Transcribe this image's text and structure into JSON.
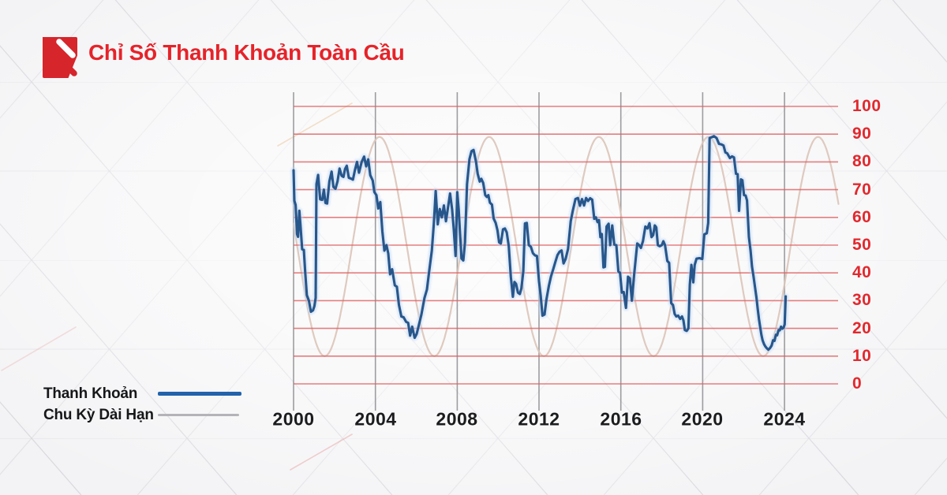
{
  "header": {
    "title": "Chỉ Số Thanh Khoản Toàn Cầu",
    "logo": "red-square-pencil-mark",
    "title_color": "#e62329"
  },
  "legend": {
    "items": [
      {
        "label": "Thanh Khoản",
        "color": "#2263ab",
        "style": "thick-solid"
      },
      {
        "label": "Chu Kỳ Dài Hạn",
        "color": "#b4b4b8",
        "style": "thin-solid"
      }
    ]
  },
  "chart_data": {
    "type": "line",
    "title": "Chỉ Số Thanh Khoản Toàn Cầu",
    "xlabel": "",
    "ylabel": "",
    "x_axis": {
      "ticks": [
        2000,
        2004,
        2008,
        2012,
        2016,
        2020,
        2024
      ],
      "range": [
        2000,
        2026.7
      ]
    },
    "y_axis": {
      "ticks": [
        0,
        10,
        20,
        30,
        40,
        50,
        60,
        70,
        80,
        90,
        100
      ],
      "range": [
        0,
        100
      ],
      "position": "right",
      "tick_color": "#e2282d"
    },
    "grid": {
      "horizontal_color": "#e06060",
      "vertical_color": "#8d8d91",
      "horizontal": true,
      "vertical": true
    },
    "legend_position": "bottom-left",
    "series": [
      {
        "name": "Thanh Khoản",
        "type": "jagged-line",
        "color": "#27568b",
        "halo_color": "#bdd6f2",
        "points": [
          [
            2000.0,
            77
          ],
          [
            2000.04,
            66
          ],
          [
            2000.1,
            64.5
          ],
          [
            2000.17,
            54
          ],
          [
            2000.22,
            53
          ],
          [
            2000.28,
            62.4
          ],
          [
            2000.34,
            57
          ],
          [
            2000.42,
            48.5
          ],
          [
            2000.5,
            48.3
          ],
          [
            2000.57,
            40
          ],
          [
            2000.65,
            32
          ],
          [
            2000.75,
            30
          ],
          [
            2000.85,
            26
          ],
          [
            2000.95,
            26.5
          ],
          [
            2001.02,
            28
          ],
          [
            2001.08,
            31
          ],
          [
            2001.12,
            72
          ],
          [
            2001.2,
            75.3
          ],
          [
            2001.3,
            66.5
          ],
          [
            2001.4,
            66.3
          ],
          [
            2001.48,
            70
          ],
          [
            2001.56,
            65.2
          ],
          [
            2001.64,
            65
          ],
          [
            2001.75,
            73
          ],
          [
            2001.86,
            76.5
          ],
          [
            2001.95,
            71
          ],
          [
            2002.05,
            70.3
          ],
          [
            2002.15,
            73
          ],
          [
            2002.25,
            77.6
          ],
          [
            2002.35,
            75
          ],
          [
            2002.44,
            74.6
          ],
          [
            2002.52,
            77.5
          ],
          [
            2002.6,
            78.6
          ],
          [
            2002.7,
            74.3
          ],
          [
            2002.8,
            74
          ],
          [
            2002.9,
            73.6
          ],
          [
            2003.0,
            77.1
          ],
          [
            2003.1,
            80
          ],
          [
            2003.2,
            76.1
          ],
          [
            2003.33,
            80
          ],
          [
            2003.45,
            81.9
          ],
          [
            2003.55,
            78.4
          ],
          [
            2003.65,
            80.9
          ],
          [
            2003.75,
            75.2
          ],
          [
            2003.87,
            73.3
          ],
          [
            2003.95,
            69.1
          ],
          [
            2004.05,
            68
          ],
          [
            2004.14,
            63.2
          ],
          [
            2004.24,
            65.5
          ],
          [
            2004.34,
            55
          ],
          [
            2004.44,
            48
          ],
          [
            2004.54,
            50
          ],
          [
            2004.63,
            47
          ],
          [
            2004.72,
            39.5
          ],
          [
            2004.82,
            41.3
          ],
          [
            2004.95,
            35.5
          ],
          [
            2005.05,
            35
          ],
          [
            2005.15,
            28.5
          ],
          [
            2005.27,
            24.3
          ],
          [
            2005.38,
            24
          ],
          [
            2005.5,
            22.4
          ],
          [
            2005.6,
            22
          ],
          [
            2005.7,
            17.4
          ],
          [
            2005.8,
            20.6
          ],
          [
            2005.92,
            16.6
          ],
          [
            2006.02,
            18
          ],
          [
            2006.12,
            21
          ],
          [
            2006.25,
            25
          ],
          [
            2006.4,
            31
          ],
          [
            2006.52,
            34
          ],
          [
            2006.63,
            40.5
          ],
          [
            2006.76,
            48
          ],
          [
            2006.86,
            58
          ],
          [
            2006.95,
            69.5
          ],
          [
            2007.05,
            57.5
          ],
          [
            2007.15,
            63
          ],
          [
            2007.25,
            60
          ],
          [
            2007.35,
            64.3
          ],
          [
            2007.45,
            58.6
          ],
          [
            2007.55,
            63.6
          ],
          [
            2007.65,
            68.6
          ],
          [
            2007.75,
            62.9
          ],
          [
            2007.83,
            55.7
          ],
          [
            2007.92,
            46.1
          ],
          [
            2008.0,
            69.1
          ],
          [
            2008.07,
            63
          ],
          [
            2008.14,
            53.9
          ],
          [
            2008.21,
            45.2
          ],
          [
            2008.3,
            44.5
          ],
          [
            2008.38,
            51
          ],
          [
            2008.48,
            72
          ],
          [
            2008.6,
            81
          ],
          [
            2008.7,
            83.9
          ],
          [
            2008.8,
            84.3
          ],
          [
            2008.92,
            80
          ],
          [
            2009.0,
            75.7
          ],
          [
            2009.1,
            72.9
          ],
          [
            2009.18,
            73.9
          ],
          [
            2009.27,
            72.4
          ],
          [
            2009.37,
            68
          ],
          [
            2009.45,
            67.4
          ],
          [
            2009.52,
            68
          ],
          [
            2009.6,
            65.3
          ],
          [
            2009.7,
            64.6
          ],
          [
            2009.78,
            59.6
          ],
          [
            2009.88,
            58
          ],
          [
            2009.97,
            55.3
          ],
          [
            2010.05,
            51
          ],
          [
            2010.13,
            50.6
          ],
          [
            2010.24,
            55.7
          ],
          [
            2010.33,
            56
          ],
          [
            2010.42,
            54.6
          ],
          [
            2010.52,
            49.6
          ],
          [
            2010.62,
            38.6
          ],
          [
            2010.72,
            31.4
          ],
          [
            2010.8,
            36.7
          ],
          [
            2010.88,
            36
          ],
          [
            2010.97,
            32.9
          ],
          [
            2011.06,
            32.4
          ],
          [
            2011.14,
            34.5
          ],
          [
            2011.23,
            40.5
          ],
          [
            2011.31,
            57.8
          ],
          [
            2011.4,
            58
          ],
          [
            2011.5,
            50
          ],
          [
            2011.6,
            49.4
          ],
          [
            2011.7,
            47.1
          ],
          [
            2011.8,
            46.3
          ],
          [
            2011.9,
            46.1
          ],
          [
            2012.0,
            37
          ],
          [
            2012.08,
            31.9
          ],
          [
            2012.17,
            24.6
          ],
          [
            2012.27,
            25
          ],
          [
            2012.36,
            30.4
          ],
          [
            2012.48,
            35.3
          ],
          [
            2012.58,
            38.6
          ],
          [
            2012.7,
            41.5
          ],
          [
            2012.8,
            44
          ],
          [
            2012.9,
            46.4
          ],
          [
            2013.0,
            47.6
          ],
          [
            2013.1,
            48.1
          ],
          [
            2013.2,
            43.4
          ],
          [
            2013.3,
            45
          ],
          [
            2013.42,
            48.6
          ],
          [
            2013.55,
            58.6
          ],
          [
            2013.65,
            62.4
          ],
          [
            2013.78,
            66.6
          ],
          [
            2013.9,
            67
          ],
          [
            2014.0,
            64.2
          ],
          [
            2014.1,
            66.6
          ],
          [
            2014.2,
            64.3
          ],
          [
            2014.3,
            67
          ],
          [
            2014.4,
            65.9
          ],
          [
            2014.5,
            66.9
          ],
          [
            2014.6,
            66.4
          ],
          [
            2014.7,
            59.5
          ],
          [
            2014.78,
            60
          ],
          [
            2014.86,
            58.3
          ],
          [
            2014.93,
            59
          ],
          [
            2015.0,
            52.9
          ],
          [
            2015.07,
            54
          ],
          [
            2015.15,
            42
          ],
          [
            2015.22,
            42.2
          ],
          [
            2015.3,
            56.7
          ],
          [
            2015.4,
            57.7
          ],
          [
            2015.48,
            50
          ],
          [
            2015.58,
            57.1
          ],
          [
            2015.68,
            50.2
          ],
          [
            2015.78,
            50
          ],
          [
            2015.88,
            40.5
          ],
          [
            2015.96,
            40
          ],
          [
            2016.05,
            32.9
          ],
          [
            2016.14,
            33.1
          ],
          [
            2016.25,
            27.4
          ],
          [
            2016.35,
            38.6
          ],
          [
            2016.44,
            38
          ],
          [
            2016.54,
            30
          ],
          [
            2016.65,
            39.5
          ],
          [
            2016.8,
            50.6
          ],
          [
            2016.9,
            50
          ],
          [
            2016.98,
            49
          ],
          [
            2017.08,
            51.4
          ],
          [
            2017.2,
            56.7
          ],
          [
            2017.3,
            56
          ],
          [
            2017.4,
            57.9
          ],
          [
            2017.5,
            52.9
          ],
          [
            2017.58,
            53.6
          ],
          [
            2017.66,
            57.1
          ],
          [
            2017.73,
            56.4
          ],
          [
            2017.81,
            50
          ],
          [
            2017.9,
            49.6
          ],
          [
            2018.0,
            50
          ],
          [
            2018.08,
            51.4
          ],
          [
            2018.16,
            50
          ],
          [
            2018.27,
            44.3
          ],
          [
            2018.36,
            43.6
          ],
          [
            2018.46,
            29.1
          ],
          [
            2018.55,
            28.4
          ],
          [
            2018.63,
            25.2
          ],
          [
            2018.71,
            24.3
          ],
          [
            2018.8,
            24.6
          ],
          [
            2018.9,
            23.4
          ],
          [
            2018.99,
            24.3
          ],
          [
            2019.06,
            22.9
          ],
          [
            2019.13,
            19.4
          ],
          [
            2019.22,
            19.1
          ],
          [
            2019.3,
            20
          ],
          [
            2019.37,
            35.7
          ],
          [
            2019.45,
            42.9
          ],
          [
            2019.54,
            36.6
          ],
          [
            2019.61,
            42.9
          ],
          [
            2019.7,
            45.1
          ],
          [
            2019.84,
            45.3
          ],
          [
            2019.98,
            45
          ],
          [
            2020.08,
            53.9
          ],
          [
            2020.2,
            54.3
          ],
          [
            2020.27,
            58
          ],
          [
            2020.34,
            88.6
          ],
          [
            2020.44,
            88.9
          ],
          [
            2020.55,
            89.3
          ],
          [
            2020.68,
            88.6
          ],
          [
            2020.8,
            86.5
          ],
          [
            2020.92,
            86.3
          ],
          [
            2021.02,
            85.9
          ],
          [
            2021.11,
            83.4
          ],
          [
            2021.2,
            83.1
          ],
          [
            2021.33,
            81.4
          ],
          [
            2021.43,
            82
          ],
          [
            2021.53,
            81.6
          ],
          [
            2021.63,
            75.7
          ],
          [
            2021.71,
            75.6
          ],
          [
            2021.78,
            62.4
          ],
          [
            2021.87,
            73.7
          ],
          [
            2021.94,
            73.4
          ],
          [
            2022.02,
            68
          ],
          [
            2022.1,
            67.9
          ],
          [
            2022.17,
            66.1
          ],
          [
            2022.26,
            52.9
          ],
          [
            2022.34,
            48
          ],
          [
            2022.41,
            42.3
          ],
          [
            2022.49,
            38.6
          ],
          [
            2022.56,
            34.7
          ],
          [
            2022.63,
            31
          ],
          [
            2022.69,
            27.1
          ],
          [
            2022.75,
            23.4
          ],
          [
            2022.81,
            20.6
          ],
          [
            2022.87,
            17.7
          ],
          [
            2022.93,
            15.7
          ],
          [
            2023.0,
            14.3
          ],
          [
            2023.07,
            13.4
          ],
          [
            2023.13,
            12.9
          ],
          [
            2023.21,
            12.3
          ],
          [
            2023.29,
            12.9
          ],
          [
            2023.37,
            13.8
          ],
          [
            2023.44,
            15.7
          ],
          [
            2023.51,
            15.5
          ],
          [
            2023.58,
            17.7
          ],
          [
            2023.64,
            17.5
          ],
          [
            2023.71,
            19.4
          ],
          [
            2023.77,
            19.3
          ],
          [
            2023.83,
            20.6
          ],
          [
            2023.89,
            19.9
          ],
          [
            2023.95,
            20.2
          ],
          [
            2024.01,
            21.4
          ],
          [
            2024.06,
            31.5
          ]
        ]
      },
      {
        "name": "Chu Kỳ Dài Hạn",
        "type": "smooth-cosine",
        "color": "#dcc4b8",
        "model": {
          "mean": 49.5,
          "amplitude": 39.5,
          "period_years": 5.36,
          "peak_year": 2004.2,
          "x_start": 2000.0,
          "x_end": 2026.65,
          "min": 10,
          "max": 89
        }
      }
    ]
  }
}
